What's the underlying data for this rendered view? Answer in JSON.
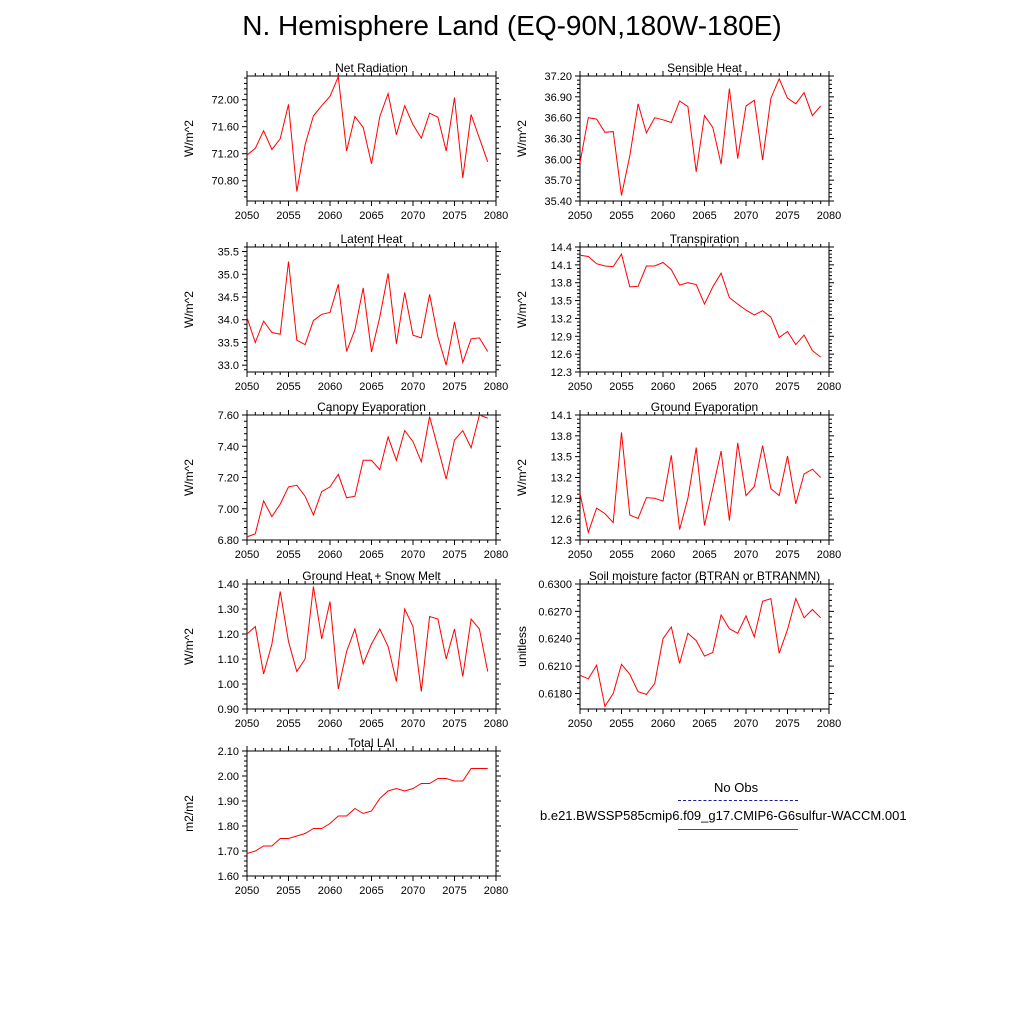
{
  "page": {
    "title": "N. Hemisphere Land (EQ-90N,180W-180E)"
  },
  "legend": {
    "entries": [
      {
        "label": "No Obs",
        "color": "#1a1aa0",
        "style": "dashed"
      },
      {
        "label": "b.e21.BWSSP585cmip6.f09_g17.CMIP6-G6sulfur-WACCM.001",
        "color": "#ff0000",
        "style": "solid"
      }
    ]
  },
  "chart_data": [
    {
      "type": "line",
      "title": "Net Radiation",
      "ylabel": "W/m^2",
      "xlim": [
        2050,
        2080
      ],
      "ylim": [
        70.5,
        72.35
      ],
      "xticks": [
        2050,
        2055,
        2060,
        2065,
        2070,
        2075,
        2080
      ],
      "yticks": [
        70.8,
        71.2,
        71.6,
        72.0
      ],
      "ytick_labels": [
        "70.80",
        "71.20",
        "71.60",
        "72.00"
      ],
      "series": [
        {
          "color": "#ff0000",
          "x": [
            2050,
            2051,
            2052,
            2053,
            2054,
            2055,
            2056,
            2057,
            2058,
            2059,
            2060,
            2061,
            2062,
            2063,
            2064,
            2065,
            2066,
            2067,
            2068,
            2069,
            2070,
            2071,
            2072,
            2073,
            2074,
            2075,
            2076,
            2077,
            2078,
            2079
          ],
          "y": [
            71.18,
            71.28,
            71.54,
            71.26,
            71.42,
            71.93,
            70.64,
            71.33,
            71.76,
            71.91,
            72.05,
            72.34,
            71.24,
            71.75,
            71.59,
            71.05,
            71.75,
            72.09,
            71.48,
            71.91,
            71.63,
            71.43,
            71.8,
            71.74,
            71.24,
            72.03,
            70.84,
            71.78,
            71.43,
            71.08
          ]
        }
      ]
    },
    {
      "type": "line",
      "title": "Sensible Heat",
      "ylabel": "W/m^2",
      "xlim": [
        2050,
        2080
      ],
      "ylim": [
        35.4,
        37.2
      ],
      "xticks": [
        2050,
        2055,
        2060,
        2065,
        2070,
        2075,
        2080
      ],
      "yticks": [
        35.4,
        35.7,
        36.0,
        36.3,
        36.6,
        36.9,
        37.2
      ],
      "ytick_labels": [
        "35.40",
        "35.70",
        "36.00",
        "36.30",
        "36.60",
        "36.90",
        "37.20"
      ],
      "series": [
        {
          "color": "#ff0000",
          "x": [
            2050,
            2051,
            2052,
            2053,
            2054,
            2055,
            2056,
            2057,
            2058,
            2059,
            2060,
            2061,
            2062,
            2063,
            2064,
            2065,
            2066,
            2067,
            2068,
            2069,
            2070,
            2071,
            2072,
            2073,
            2074,
            2075,
            2076,
            2077,
            2078,
            2079
          ],
          "y": [
            35.95,
            36.6,
            36.58,
            36.39,
            36.4,
            35.48,
            36.05,
            36.8,
            36.38,
            36.6,
            36.57,
            36.53,
            36.84,
            36.76,
            35.82,
            36.63,
            36.46,
            35.93,
            37.02,
            36.01,
            36.77,
            36.85,
            35.99,
            36.88,
            37.16,
            36.88,
            36.8,
            36.96,
            36.63,
            36.77
          ]
        }
      ]
    },
    {
      "type": "line",
      "title": "Latent Heat",
      "ylabel": "W/m^2",
      "xlim": [
        2050,
        2080
      ],
      "ylim": [
        32.85,
        35.6
      ],
      "xticks": [
        2050,
        2055,
        2060,
        2065,
        2070,
        2075,
        2080
      ],
      "yticks": [
        33.0,
        33.5,
        34.0,
        34.5,
        35.0,
        35.5
      ],
      "ytick_labels": [
        "33.0",
        "33.5",
        "34.0",
        "34.5",
        "35.0",
        "35.5"
      ],
      "series": [
        {
          "color": "#ff0000",
          "x": [
            2050,
            2051,
            2052,
            2053,
            2054,
            2055,
            2056,
            2057,
            2058,
            2059,
            2060,
            2061,
            2062,
            2063,
            2064,
            2065,
            2066,
            2067,
            2068,
            2069,
            2070,
            2071,
            2072,
            2073,
            2074,
            2075,
            2076,
            2077,
            2078,
            2079
          ],
          "y": [
            34.05,
            33.5,
            33.97,
            33.72,
            33.68,
            35.28,
            33.55,
            33.45,
            33.98,
            34.12,
            34.16,
            34.78,
            33.3,
            33.78,
            34.7,
            33.29,
            34.06,
            35.02,
            33.47,
            34.6,
            33.66,
            33.6,
            34.56,
            33.62,
            33.0,
            33.95,
            33.06,
            33.58,
            33.6,
            33.3
          ]
        }
      ]
    },
    {
      "type": "line",
      "title": "Transpiration",
      "ylabel": "W/m^2",
      "xlim": [
        2050,
        2080
      ],
      "ylim": [
        12.3,
        14.4
      ],
      "xticks": [
        2050,
        2055,
        2060,
        2065,
        2070,
        2075,
        2080
      ],
      "yticks": [
        12.3,
        12.6,
        12.9,
        13.2,
        13.5,
        13.8,
        14.1,
        14.4
      ],
      "ytick_labels": [
        "12.3",
        "12.6",
        "12.9",
        "13.2",
        "13.5",
        "13.8",
        "14.1",
        "14.4"
      ],
      "series": [
        {
          "color": "#ff0000",
          "x": [
            2050,
            2051,
            2052,
            2053,
            2054,
            2055,
            2056,
            2057,
            2058,
            2059,
            2060,
            2061,
            2062,
            2063,
            2064,
            2065,
            2066,
            2067,
            2068,
            2069,
            2070,
            2071,
            2072,
            2073,
            2074,
            2075,
            2076,
            2077,
            2078,
            2079
          ],
          "y": [
            14.26,
            14.24,
            14.12,
            14.08,
            14.07,
            14.28,
            13.73,
            13.74,
            14.08,
            14.08,
            14.14,
            14.02,
            13.76,
            13.8,
            13.77,
            13.44,
            13.73,
            13.96,
            13.55,
            13.44,
            13.34,
            13.26,
            13.33,
            13.22,
            12.88,
            12.98,
            12.76,
            12.92,
            12.66,
            12.55
          ]
        }
      ]
    },
    {
      "type": "line",
      "title": "Canopy Evaporation",
      "ylabel": "W/m^2",
      "xlim": [
        2050,
        2080
      ],
      "ylim": [
        6.8,
        7.6
      ],
      "xticks": [
        2050,
        2055,
        2060,
        2065,
        2070,
        2075,
        2080
      ],
      "yticks": [
        6.8,
        7.0,
        7.2,
        7.4,
        7.6
      ],
      "ytick_labels": [
        "6.80",
        "7.00",
        "7.20",
        "7.40",
        "7.60"
      ],
      "series": [
        {
          "color": "#ff0000",
          "x": [
            2050,
            2051,
            2052,
            2053,
            2054,
            2055,
            2056,
            2057,
            2058,
            2059,
            2060,
            2061,
            2062,
            2063,
            2064,
            2065,
            2066,
            2067,
            2068,
            2069,
            2070,
            2071,
            2072,
            2073,
            2074,
            2075,
            2076,
            2077,
            2078,
            2079
          ],
          "y": [
            6.82,
            6.84,
            7.05,
            6.95,
            7.03,
            7.14,
            7.15,
            7.08,
            6.96,
            7.11,
            7.14,
            7.22,
            7.07,
            7.08,
            7.31,
            7.31,
            7.25,
            7.46,
            7.31,
            7.5,
            7.43,
            7.3,
            7.59,
            7.39,
            7.19,
            7.44,
            7.5,
            7.39,
            7.6,
            7.58
          ]
        }
      ]
    },
    {
      "type": "line",
      "title": "Ground Evaporation",
      "ylabel": "W/m^2",
      "xlim": [
        2050,
        2080
      ],
      "ylim": [
        12.3,
        14.1
      ],
      "xticks": [
        2050,
        2055,
        2060,
        2065,
        2070,
        2075,
        2080
      ],
      "yticks": [
        12.3,
        12.6,
        12.9,
        13.2,
        13.5,
        13.8,
        14.1
      ],
      "ytick_labels": [
        "12.3",
        "12.6",
        "12.9",
        "13.2",
        "13.5",
        "13.8",
        "14.1"
      ],
      "series": [
        {
          "color": "#ff0000",
          "x": [
            2050,
            2051,
            2052,
            2053,
            2054,
            2055,
            2056,
            2057,
            2058,
            2059,
            2060,
            2061,
            2062,
            2063,
            2064,
            2065,
            2066,
            2067,
            2068,
            2069,
            2070,
            2071,
            2072,
            2073,
            2074,
            2075,
            2076,
            2077,
            2078,
            2079
          ],
          "y": [
            12.97,
            12.41,
            12.76,
            12.68,
            12.55,
            13.85,
            12.66,
            12.61,
            12.91,
            12.9,
            12.86,
            13.52,
            12.45,
            12.9,
            13.63,
            12.51,
            13.04,
            13.58,
            12.58,
            13.7,
            12.94,
            13.07,
            13.66,
            13.04,
            12.94,
            13.51,
            12.82,
            13.25,
            13.32,
            13.2
          ]
        }
      ]
    },
    {
      "type": "line",
      "title": "Ground Heat + Snow Melt",
      "ylabel": "W/m^2",
      "xlim": [
        2050,
        2080
      ],
      "ylim": [
        0.9,
        1.4
      ],
      "xticks": [
        2050,
        2055,
        2060,
        2065,
        2070,
        2075,
        2080
      ],
      "yticks": [
        0.9,
        1.0,
        1.1,
        1.2,
        1.3,
        1.4
      ],
      "ytick_labels": [
        "0.90",
        "1.00",
        "1.10",
        "1.20",
        "1.30",
        "1.40"
      ],
      "series": [
        {
          "color": "#ff0000",
          "x": [
            2050,
            2051,
            2052,
            2053,
            2054,
            2055,
            2056,
            2057,
            2058,
            2059,
            2060,
            2061,
            2062,
            2063,
            2064,
            2065,
            2066,
            2067,
            2068,
            2069,
            2070,
            2071,
            2072,
            2073,
            2074,
            2075,
            2076,
            2077,
            2078,
            2079
          ],
          "y": [
            1.2,
            1.23,
            1.04,
            1.16,
            1.37,
            1.17,
            1.05,
            1.1,
            1.39,
            1.18,
            1.33,
            0.98,
            1.13,
            1.22,
            1.08,
            1.16,
            1.22,
            1.15,
            1.01,
            1.3,
            1.23,
            0.97,
            1.27,
            1.26,
            1.1,
            1.22,
            1.03,
            1.26,
            1.22,
            1.05
          ]
        }
      ]
    },
    {
      "type": "line",
      "title": "Soil moisture factor (BTRAN or BTRANMN)",
      "ylabel": "unitless",
      "xlim": [
        2050,
        2080
      ],
      "ylim": [
        0.6163,
        0.63
      ],
      "xticks": [
        2050,
        2055,
        2060,
        2065,
        2070,
        2075,
        2080
      ],
      "yticks": [
        0.618,
        0.621,
        0.624,
        0.627,
        0.63
      ],
      "ytick_labels": [
        "0.6180",
        "0.6210",
        "0.6240",
        "0.6270",
        "0.6300"
      ],
      "series": [
        {
          "color": "#ff0000",
          "x": [
            2050,
            2051,
            2052,
            2053,
            2054,
            2055,
            2056,
            2057,
            2058,
            2059,
            2060,
            2061,
            2062,
            2063,
            2064,
            2065,
            2066,
            2067,
            2068,
            2069,
            2070,
            2071,
            2072,
            2073,
            2074,
            2075,
            2076,
            2077,
            2078,
            2079
          ],
          "y": [
            0.62,
            0.6196,
            0.6211,
            0.6166,
            0.618,
            0.6212,
            0.6201,
            0.6182,
            0.6179,
            0.6191,
            0.624,
            0.6253,
            0.6213,
            0.6246,
            0.6238,
            0.6221,
            0.6225,
            0.6266,
            0.6251,
            0.6246,
            0.6265,
            0.6242,
            0.6281,
            0.6284,
            0.6224,
            0.625,
            0.6284,
            0.6263,
            0.6272,
            0.6263
          ]
        }
      ]
    },
    {
      "type": "line",
      "title": "Total LAI",
      "ylabel": "m2/m2",
      "xlim": [
        2050,
        2080
      ],
      "ylim": [
        1.6,
        2.1
      ],
      "xticks": [
        2050,
        2055,
        2060,
        2065,
        2070,
        2075,
        2080
      ],
      "yticks": [
        1.6,
        1.7,
        1.8,
        1.9,
        2.0,
        2.1
      ],
      "ytick_labels": [
        "1.60",
        "1.70",
        "1.80",
        "1.90",
        "2.00",
        "2.10"
      ],
      "series": [
        {
          "color": "#ff0000",
          "x": [
            2050,
            2051,
            2052,
            2053,
            2054,
            2055,
            2056,
            2057,
            2058,
            2059,
            2060,
            2061,
            2062,
            2063,
            2064,
            2065,
            2066,
            2067,
            2068,
            2069,
            2070,
            2071,
            2072,
            2073,
            2074,
            2075,
            2076,
            2077,
            2078,
            2079
          ],
          "y": [
            1.69,
            1.7,
            1.72,
            1.72,
            1.75,
            1.75,
            1.76,
            1.77,
            1.79,
            1.79,
            1.81,
            1.84,
            1.84,
            1.87,
            1.85,
            1.86,
            1.91,
            1.94,
            1.95,
            1.94,
            1.95,
            1.97,
            1.97,
            1.99,
            1.99,
            1.98,
            1.98,
            2.03,
            2.03,
            2.03
          ]
        }
      ]
    }
  ]
}
